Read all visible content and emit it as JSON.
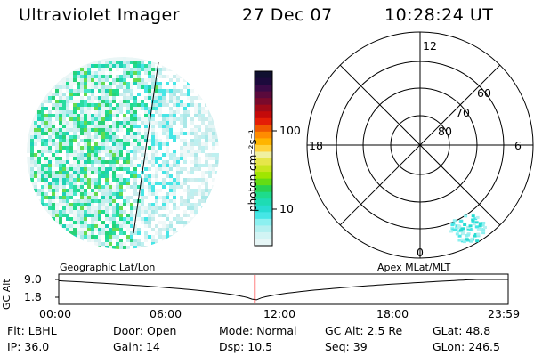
{
  "header": {
    "instrument": "Ultraviolet Imager",
    "date": "27 Dec 07",
    "time": "10:28:24 UT"
  },
  "colorbar": {
    "unit_label": "photon cm⁻²s⁻¹",
    "ticks": [
      "100",
      "10"
    ],
    "colors": [
      "#101030",
      "#1c0a3c",
      "#3a0a46",
      "#5a0a3c",
      "#7a0a2c",
      "#a00a18",
      "#c40a0a",
      "#e41e06",
      "#f05a00",
      "#ff8c00",
      "#ffb400",
      "#ffd23c",
      "#f0f0a0",
      "#e6e64a",
      "#c8e61e",
      "#a0e600",
      "#64dc14",
      "#28d250",
      "#1edc8c",
      "#1edcb4",
      "#28dcd2",
      "#46e6e6",
      "#8cf0f0",
      "#b4f0f0",
      "#d2f4f4",
      "#e6f6f6"
    ]
  },
  "polar_plot": {
    "mlt_labels": {
      "top": "12",
      "left": "18",
      "right": "6",
      "bottom": "0"
    },
    "lat_labels": [
      "60",
      "70",
      "80"
    ]
  },
  "timeline": {
    "ylabel": "GC Alt",
    "yticks": [
      "9.0",
      "1.8"
    ],
    "left_caption": "Geographic Lat/Lon",
    "right_caption": "Apex MLat/MLT",
    "xticks": [
      "00:00",
      "06:00",
      "12:00",
      "18:00",
      "23:59"
    ],
    "current_time_fraction": 0.4364
  },
  "status": {
    "row1": [
      {
        "label": "Flt:",
        "value": "LBHL"
      },
      {
        "label": "Door:",
        "value": "Open"
      },
      {
        "label": "Mode:",
        "value": "Normal"
      },
      {
        "label": "GC Alt:",
        "value": "2.5 Re"
      },
      {
        "label": "GLat:",
        "value": "48.8"
      }
    ],
    "row2": [
      {
        "label": "IP:",
        "value": "36.0"
      },
      {
        "label": "Gain:",
        "value": "14"
      },
      {
        "label": "Dsp:",
        "value": "10.5"
      },
      {
        "label": "Seq:",
        "value": "39"
      },
      {
        "label": "GLon:",
        "value": "246.5"
      }
    ]
  }
}
